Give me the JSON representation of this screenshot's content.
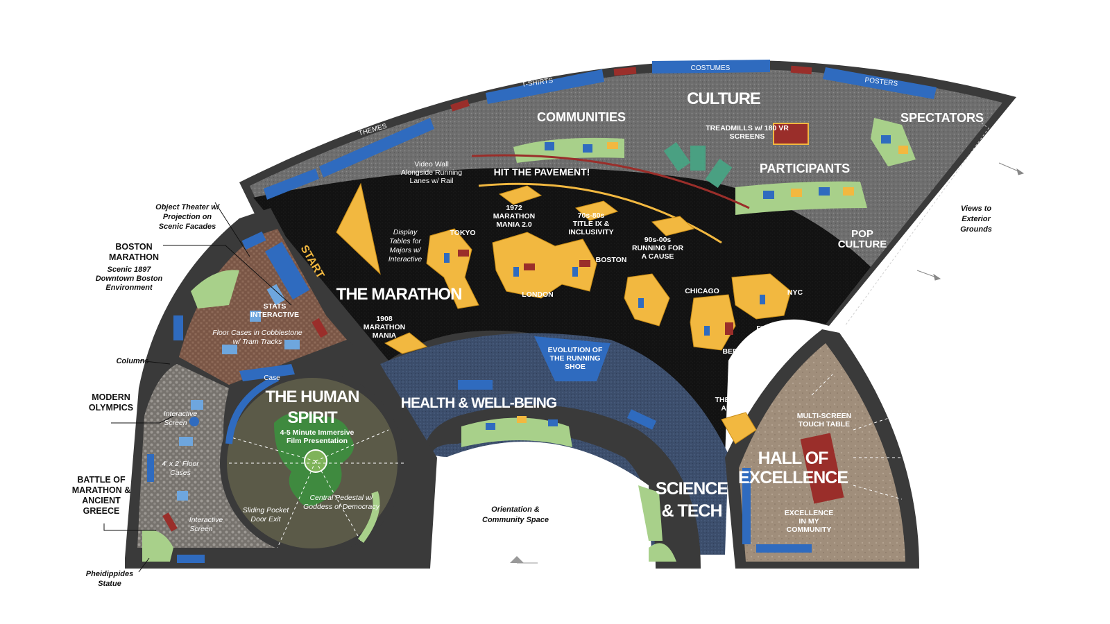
{
  "zones": {
    "culture": "CULTURE",
    "communities": "COMMUNITIES",
    "spectators": "SPECTATORS",
    "participants": "PARTICIPANTS",
    "pop_culture_1": "POP",
    "pop_culture_2": "CULTURE",
    "marathon": "THE MARATHON",
    "hit_pavement": "HIT THE PAVEMENT!",
    "health": "HEALTH & WELL-BEING",
    "science_1": "SCIENCE",
    "science_2": "& TECH",
    "hall_1": "HALL OF",
    "hall_2": "EXCELLENCE",
    "human_spirit_1": "THE HUMAN",
    "human_spirit_2": "SPIRIT",
    "start": "START"
  },
  "wall_labels": {
    "themes": "THEMES",
    "tshirts": "T-SHIRTS",
    "costumes": "COSTUMES",
    "posters": "POSTERS",
    "case": "Case"
  },
  "labels": {
    "treadmills_1": "TREADMILLS w/ 180 VR",
    "treadmills_2": "SCREENS",
    "video_wall_1": "Video Wall",
    "video_wall_2": "Alongside Running",
    "video_wall_3": "Lanes w/ Rail",
    "m1972_1": "1972",
    "m1972_2": "MARATHON",
    "m1972_3": "MANIA 2.0",
    "m70s_1": "70s-80s",
    "m70s_2": "TITLE IX &",
    "m70s_3": "INCLUSIVITY",
    "m90s_1": "90s-00s",
    "m90s_2": "RUNNING FOR",
    "m90s_3": "A CAUSE",
    "tokyo": "TOKYO",
    "london": "LONDON",
    "boston": "BOSTON",
    "chicago": "CHICAGO",
    "nyc": "NYC",
    "berlin": "BERLIN",
    "display_1": "Display",
    "display_2": "Tables for",
    "display_3": "Majors w/",
    "display_4": "Interactive",
    "m1908_1": "1908",
    "m1908_2": "MARATHON",
    "m1908_3": "MANIA",
    "finish_1": "FINISH LINE",
    "finish_2": "w/ DIGITAL",
    "finish_3": "CLOCK",
    "road_1": "THE ROAD",
    "road_2": "AHEAD",
    "shoe_1": "EVOLUTION OF",
    "shoe_2": "THE RUNNING",
    "shoe_3": "SHOE",
    "touch_1": "MULTI-SCREEN",
    "touch_2": "TOUCH TABLE",
    "community_1": "EXCELLENCE",
    "community_2": "IN MY",
    "community_3": "COMMUNITY",
    "film_1": "4-5 Minute Immersive",
    "film_2": "Film Presentation",
    "pedestal_1": "Central Pedestal w/",
    "pedestal_2": "Goddess of Democracy",
    "sliding_1": "Sliding Pocket",
    "sliding_2": "Door Exit",
    "stats_1": "STATS",
    "stats_2": "INTERACTIVE",
    "floor_1": "Floor Cases in Cobblestone",
    "floor_2": "w/ Tram Tracks",
    "interactive_screen_1a": "Interactive",
    "interactive_screen_1b": "Screen",
    "floor_cases_1": "4' x 2' Floor",
    "floor_cases_2": "Cases",
    "interactive_screen_2a": "Interactive",
    "interactive_screen_2b": "Screen"
  },
  "exterior": {
    "object_theater_1": "Object Theater w/",
    "object_theater_2": "Projection on",
    "object_theater_3": "Scenic Facades",
    "boston_1": "BOSTON",
    "boston_2": "MARATHON",
    "boston_sub_1": "Scenic 1897",
    "boston_sub_2": "Downtown Boston",
    "boston_sub_3": "Environment",
    "columns": "Columns",
    "olympics_1": "MODERN",
    "olympics_2": "OLYMPICS",
    "battle_1": "BATTLE OF",
    "battle_2": "MARATHON &",
    "battle_3": "ANCIENT",
    "battle_4": "GREECE",
    "pheidippides_1": "Pheidippides",
    "pheidippides_2": "Statue",
    "orientation_1": "Orientation &",
    "orientation_2": "Community Space",
    "views_1": "Views to",
    "views_2": "Exterior",
    "views_3": "Grounds"
  },
  "colors": {
    "wall": "#3a3a3a",
    "gravel": "#6b6b6b",
    "asphalt": "#151515",
    "blue_floor": "#3d4f6e",
    "cobble": "#7b5a4a",
    "stone": "#8a8680",
    "spirit": "#5a5a4a",
    "hall": "#9e8c7a",
    "yellow": "#f2b840",
    "green_table": "#a8d08a",
    "panel_blue": "#2f6bbf",
    "red": "#9a2e2a"
  }
}
